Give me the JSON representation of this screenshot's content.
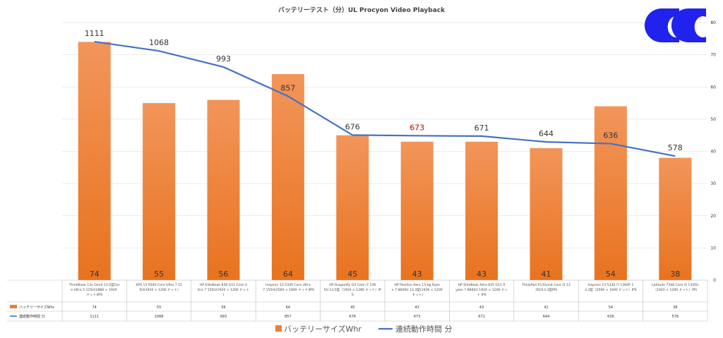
{
  "chart_data": {
    "type": "bar",
    "title": "バッテリーテスト（分）UL Procyon Video Playback",
    "categories": [
      "ThinkBook 13x Gen4 13.5型Core Ultra 5 125H(2880 × 1920 ドット)IPS",
      "XPS 13 9340 Core Ultra 7 155H(1920 × 1200 ドット)",
      "HP EliteBook 830 G11 Core Ultra 7 155U(1920 × 1200 ドット)",
      "Inspiron 13 5330 Core Ultra 7 155H(2560 × 1600 ドット)IPS",
      "HP Dragonfly G4 Core i7 1365U 13.5型（1920 × 1280 ドット）IPS",
      "HP Pavilion Aero 13-bg Ryzen 7 8840U 13.3型(1920 × 1200 ドット)",
      "HP EliteBook Aero 635 G11 Ryzen 7 8840U 1920 × 1200 ドット IPS",
      "ThinkPad X13Gen4 Core i5 1335U13.3型IPS",
      "Inspiron 13 5330 i7 1360P 13.3型（2560 × 1600 ドット）IPS",
      "Latitude 7340 Core i5 1345U（1920 × 1200 ドット）IPS"
    ],
    "series": [
      {
        "name": "バッテリーサイズWhr",
        "type": "bar",
        "axis": "right",
        "color": "#ED7D31",
        "values": [
          74,
          55,
          56,
          64,
          45,
          43,
          43,
          41,
          54,
          38
        ]
      },
      {
        "name": "連続動作時間 分",
        "type": "line",
        "axis": "left",
        "color": "#4472C4",
        "values": [
          1111,
          1068,
          993,
          857,
          676,
          673,
          671,
          644,
          636,
          578
        ]
      }
    ],
    "highlight_label_color": "#C00000",
    "highlight_index": 5,
    "y_left": {
      "min": 0,
      "max": 1200,
      "tick_step": 200,
      "ticks_shown": false
    },
    "y_right": {
      "min": 0,
      "max": 80,
      "tick_step": 10,
      "ticks": [
        "0",
        "10",
        "20",
        "30",
        "40",
        "50",
        "60",
        "70",
        "80"
      ]
    },
    "grid": true,
    "legend": "bottom",
    "data_table": true
  }
}
